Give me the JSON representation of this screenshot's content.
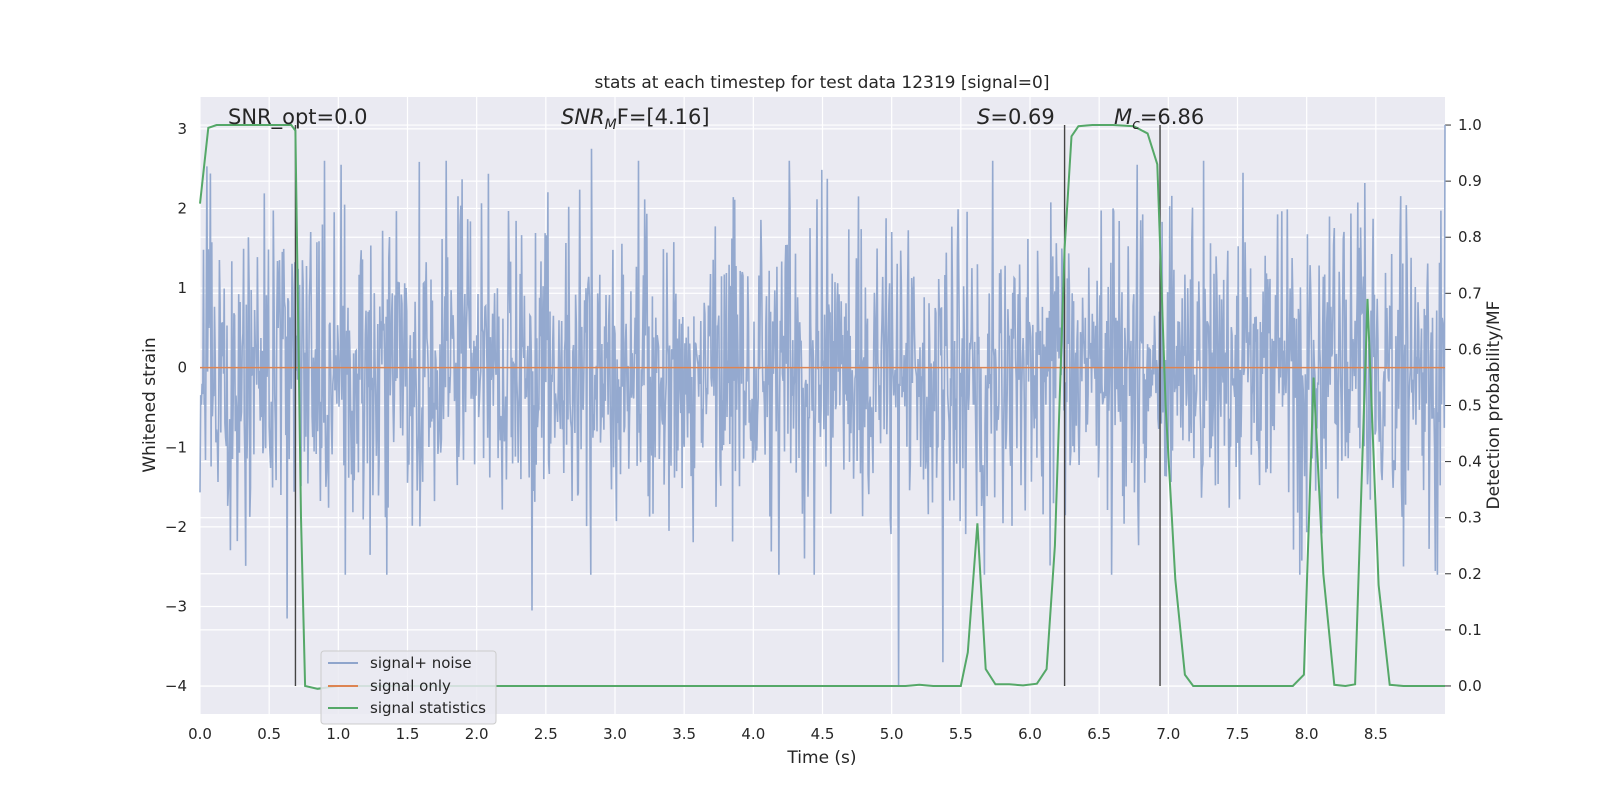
{
  "chart_data": {
    "type": "line",
    "title": "stats at each timestep for test data 12319 [signal=0]",
    "xlabel": "Time (s)",
    "ylabel": "Whitened strain",
    "ylabel_right": "Detection probability/MF",
    "xlim": [
      0.0,
      9.0
    ],
    "ylim": [
      -4.35,
      3.4
    ],
    "ylim_right": [
      -0.05,
      1.05
    ],
    "grid": true,
    "background": "#eaeaf2",
    "x_ticks": [
      "0.0",
      "0.5",
      "1.0",
      "1.5",
      "2.0",
      "2.5",
      "3.0",
      "3.5",
      "4.0",
      "4.5",
      "5.0",
      "5.5",
      "6.0",
      "6.5",
      "7.0",
      "7.5",
      "8.0",
      "8.5"
    ],
    "y_ticks": [
      "3",
      "2",
      "1",
      "0",
      "−1",
      "−2",
      "−3",
      "−4"
    ],
    "y_right_ticks": [
      "1.0",
      "0.9",
      "0.8",
      "0.7",
      "0.6",
      "0.5",
      "0.4",
      "0.3",
      "0.2",
      "0.1",
      "0.0"
    ],
    "annotations": {
      "snr_opt": "SNR_opt=0.0",
      "snr_mf_label": "SNR",
      "snr_mf_sub": "M",
      "snr_mf_tail": "F=[4.16]",
      "s_label": "S",
      "s_value": "=0.69",
      "mc_label": "M",
      "mc_sub": "c",
      "mc_value": "=6.86"
    },
    "vlines_x": [
      0.69,
      6.25,
      6.94
    ],
    "legend": {
      "placement": "lower-left",
      "entries": [
        "signal+ noise",
        "signal only",
        "signal statistics"
      ]
    },
    "colors": {
      "signal_noise": "#8fa5cc",
      "signal_only": "#dd8452",
      "signal_statistics": "#55a868",
      "vline": "#444444"
    },
    "series": [
      {
        "name": "signal+ noise",
        "description_values": "dense whitened noise approximately within [-1.6, 1.6] with spikes to about 2.9 and down to -4.0",
        "extremes": [
          {
            "x": 0.63,
            "y": -3.15
          },
          {
            "x": 1.02,
            "y": 2.55
          },
          {
            "x": 2.4,
            "y": -3.05
          },
          {
            "x": 2.83,
            "y": 2.75
          },
          {
            "x": 5.05,
            "y": -4.0
          },
          {
            "x": 5.37,
            "y": -3.7
          },
          {
            "x": 9.0,
            "y": 3.05
          }
        ]
      },
      {
        "name": "signal only",
        "x": [
          0.0,
          9.0
        ],
        "y": [
          0.0,
          0.0
        ]
      },
      {
        "name": "signal statistics",
        "axis": "right",
        "x": [
          0.0,
          0.06,
          0.12,
          0.2,
          0.3,
          0.4,
          0.5,
          0.6,
          0.66,
          0.69,
          0.73,
          0.76,
          0.85,
          1.0,
          2.0,
          3.0,
          4.0,
          5.0,
          5.1,
          5.2,
          5.3,
          5.4,
          5.5,
          5.55,
          5.62,
          5.68,
          5.75,
          5.85,
          5.95,
          6.05,
          6.12,
          6.18,
          6.25,
          6.3,
          6.35,
          6.45,
          6.6,
          6.75,
          6.85,
          6.92,
          6.98,
          7.05,
          7.12,
          7.18,
          7.3,
          7.5,
          7.9,
          7.98,
          8.05,
          8.12,
          8.2,
          8.28,
          8.35,
          8.44,
          8.52,
          8.6,
          8.7,
          9.0
        ],
        "y": [
          0.86,
          0.995,
          1.0,
          1.0,
          1.0,
          1.0,
          1.0,
          1.0,
          1.0,
          0.99,
          0.3,
          0.0,
          -0.005,
          0.0,
          0.0,
          0.0,
          0.0,
          0.0,
          0.0,
          0.002,
          0.0,
          0.0,
          0.0,
          0.06,
          0.29,
          0.03,
          0.003,
          0.003,
          0.001,
          0.004,
          0.03,
          0.25,
          0.78,
          0.98,
          0.998,
          1.0,
          1.0,
          0.998,
          0.985,
          0.93,
          0.5,
          0.19,
          0.02,
          0.0,
          0.0,
          0.0,
          0.0,
          0.02,
          0.55,
          0.2,
          0.002,
          0.0,
          0.003,
          0.69,
          0.18,
          0.002,
          0.0,
          0.0
        ]
      }
    ]
  }
}
